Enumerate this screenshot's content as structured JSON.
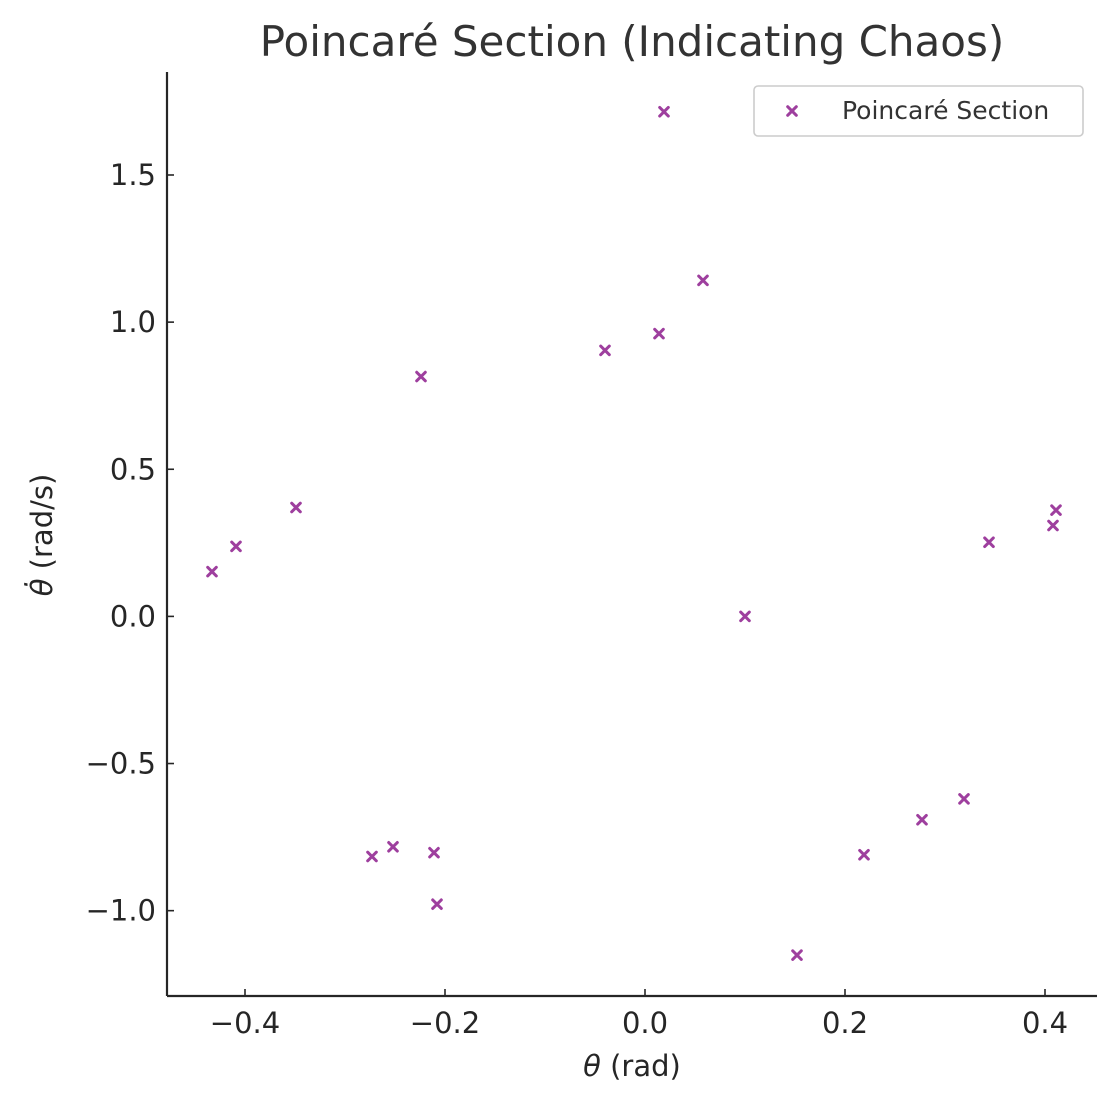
{
  "chart_data": {
    "type": "scatter",
    "title": "Poincaré Section (Indicating Chaos)",
    "xlabel_symbol": "θ",
    "xlabel_unit": " (rad)",
    "ylabel_symbol": "θ̇",
    "ylabel_unit": " (rad/s)",
    "xlim": [
      -0.478,
      0.452
    ],
    "ylim": [
      -1.29,
      1.85
    ],
    "xticks": [
      {
        "value": -0.4,
        "label": "−0.4"
      },
      {
        "value": -0.2,
        "label": "−0.2"
      },
      {
        "value": 0.0,
        "label": "0.0"
      },
      {
        "value": 0.2,
        "label": "0.2"
      },
      {
        "value": 0.4,
        "label": "0.4"
      }
    ],
    "yticks": [
      {
        "value": -1.0,
        "label": "−1.0"
      },
      {
        "value": -0.5,
        "label": "−0.5"
      },
      {
        "value": 0.0,
        "label": "0.0"
      },
      {
        "value": 0.5,
        "label": "0.5"
      },
      {
        "value": 1.0,
        "label": "1.0"
      },
      {
        "value": 1.5,
        "label": "1.5"
      }
    ],
    "grid": false,
    "legend_position": "top-right",
    "series": [
      {
        "name": "Poincaré Section",
        "marker": "x",
        "color": "#9e3f9e",
        "points": [
          {
            "x": 0.019,
            "y": 1.715
          },
          {
            "x": 0.058,
            "y": 1.142
          },
          {
            "x": 0.014,
            "y": 0.961
          },
          {
            "x": -0.04,
            "y": 0.904
          },
          {
            "x": -0.224,
            "y": 0.815
          },
          {
            "x": -0.349,
            "y": 0.37
          },
          {
            "x": -0.409,
            "y": 0.238
          },
          {
            "x": -0.433,
            "y": 0.152
          },
          {
            "x": 0.1,
            "y": 0.0
          },
          {
            "x": 0.344,
            "y": 0.252
          },
          {
            "x": 0.408,
            "y": 0.309
          },
          {
            "x": 0.411,
            "y": 0.361
          },
          {
            "x": -0.273,
            "y": -0.816
          },
          {
            "x": -0.252,
            "y": -0.783
          },
          {
            "x": -0.211,
            "y": -0.803
          },
          {
            "x": -0.208,
            "y": -0.978
          },
          {
            "x": 0.152,
            "y": -1.151
          },
          {
            "x": 0.219,
            "y": -0.81
          },
          {
            "x": 0.277,
            "y": -0.691
          },
          {
            "x": 0.319,
            "y": -0.62
          }
        ]
      }
    ]
  }
}
